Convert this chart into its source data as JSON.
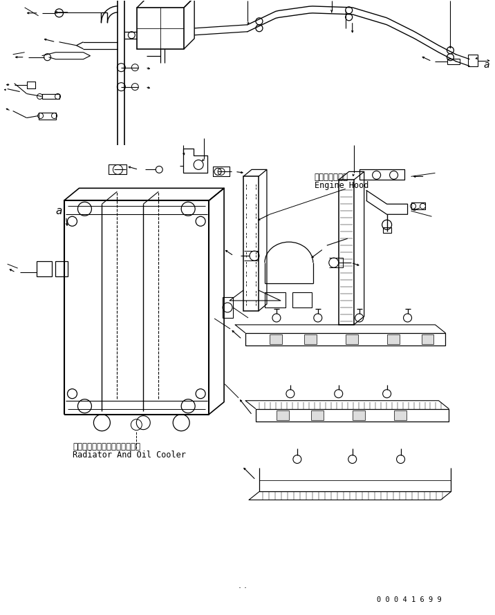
{
  "bg_color": "#ffffff",
  "line_color": "#000000",
  "fig_width": 7.16,
  "fig_height": 8.9,
  "dpi": 100,
  "part_number": "0 0 0 4 1 6 9 9",
  "label_engine_hood_jp": "エンジンフード",
  "label_engine_hood_en": "Engine Hood",
  "label_radiator_jp": "ラジエータおよびオイルクーラ",
  "label_radiator_en": "Radiator And Oil Cooler"
}
